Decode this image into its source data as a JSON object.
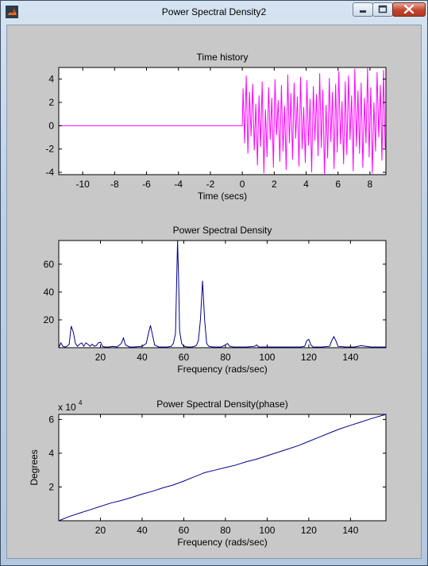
{
  "window": {
    "title": "Power Spectral Density2",
    "icon": "matlab-icon",
    "controls": [
      "minimize-icon",
      "maximize-icon",
      "close-icon"
    ]
  },
  "chart_data": [
    {
      "type": "line",
      "title": "Time history",
      "xlabel": "Time (secs)",
      "ylabel": "",
      "xlim": [
        -11.5,
        9
      ],
      "ylim": [
        -4.2,
        5
      ],
      "xticks": [
        -10,
        -8,
        -6,
        -4,
        -2,
        0,
        2,
        4,
        6,
        8
      ],
      "yticks": [
        -4,
        -2,
        0,
        2,
        4
      ],
      "color": "#ff00ff",
      "series": [
        {
          "x": [
            -11.5,
            0,
            0.05,
            0.15,
            0.25,
            0.35,
            0.45,
            0.55,
            0.65,
            0.75,
            0.85,
            0.95,
            1.05,
            1.15,
            1.25,
            1.35,
            1.45,
            1.55,
            1.65,
            1.75,
            1.85,
            1.95,
            2.05,
            2.15,
            2.25,
            2.35,
            2.45,
            2.55,
            2.65,
            2.75,
            2.85,
            2.95,
            3.05,
            3.15,
            3.25,
            3.35,
            3.45,
            3.55,
            3.65,
            3.75,
            3.85,
            3.95,
            4.05,
            4.15,
            4.25,
            4.35,
            4.45,
            4.55,
            4.65,
            4.75,
            4.85,
            4.95,
            5.05,
            5.15,
            5.25,
            5.35,
            5.45,
            5.55,
            5.65,
            5.75,
            5.85,
            5.95,
            6.05,
            6.15,
            6.25,
            6.35,
            6.45,
            6.55,
            6.65,
            6.75,
            6.85,
            6.95,
            7.05,
            7.15,
            7.25,
            7.35,
            7.45,
            7.55,
            7.65,
            7.75,
            7.85,
            7.95,
            8.05,
            8.15,
            8.25,
            8.35,
            8.45,
            8.55,
            8.65,
            8.75,
            8.85,
            8.95
          ],
          "y": [
            0,
            0,
            3.2,
            -1.5,
            4.3,
            -2.4,
            2.9,
            -0.9,
            3.6,
            -2.1,
            1.9,
            -3.4,
            2.6,
            -1.8,
            3.8,
            -4.1,
            1.4,
            -2.7,
            3.3,
            -1.2,
            2.4,
            -3.6,
            4.0,
            -0.8,
            2.2,
            -3.1,
            3.5,
            -2.2,
            1.7,
            -3.8,
            4.4,
            -1.5,
            2.8,
            -2.9,
            3.7,
            -1.1,
            2.5,
            -3.5,
            4.2,
            -2.0,
            1.6,
            -3.2,
            3.9,
            -1.7,
            2.3,
            -4.0,
            3.4,
            -1.3,
            2.7,
            -2.6,
            4.5,
            -1.9,
            3.1,
            -4.2,
            1.8,
            -2.8,
            4.1,
            -1.4,
            2.9,
            -3.7,
            3.6,
            -2.3,
            4.7,
            -1.6,
            2.1,
            -3.3,
            3.8,
            -2.5,
            4.3,
            -1.2,
            2.6,
            -3.9,
            4.9,
            -1.8,
            3.0,
            -2.4,
            3.7,
            -3.6,
            2.4,
            -1.5,
            5.0,
            -2.7,
            3.3,
            -4.1,
            2.0,
            -2.2,
            4.6,
            -1.0,
            3.5,
            -3.0,
            4.8,
            -1.9
          ]
        }
      ]
    },
    {
      "type": "line",
      "title": "Power Spectral Density",
      "xlabel": "Frequency (rads/sec)",
      "ylabel": "",
      "xlim": [
        0,
        157
      ],
      "ylim": [
        0,
        77
      ],
      "xticks": [
        20,
        40,
        60,
        80,
        100,
        120,
        140
      ],
      "yticks": [
        20,
        40,
        60
      ],
      "color": "#00008b",
      "series": [
        {
          "x": [
            0,
            1,
            2,
            3,
            4,
            5,
            6,
            7,
            8,
            9,
            10,
            11,
            12,
            13,
            14,
            15,
            16,
            17,
            18,
            19,
            20,
            21,
            22,
            24,
            26,
            28,
            30,
            31,
            32,
            34,
            36,
            40,
            42,
            43,
            44,
            45,
            46,
            48,
            50,
            52,
            54,
            55,
            56,
            57,
            57.5,
            58,
            59,
            60,
            62,
            64,
            66,
            67,
            68,
            69,
            70,
            71,
            72,
            74,
            78,
            80,
            81,
            82,
            84,
            90,
            94,
            95,
            96,
            100,
            110,
            116,
            118,
            119,
            120,
            121,
            122,
            126,
            130,
            131,
            132,
            133,
            134,
            138,
            142,
            145,
            150,
            157
          ],
          "y": [
            0,
            3.5,
            1.0,
            0.5,
            1.0,
            2.5,
            15.5,
            11.0,
            3.0,
            1.0,
            2.5,
            3.5,
            1.0,
            3.5,
            2.5,
            1.0,
            2.5,
            1.0,
            1.5,
            3.5,
            4.0,
            1.0,
            0.5,
            0.5,
            1.0,
            0.5,
            3.0,
            7.0,
            2.0,
            0.5,
            0.5,
            1.0,
            3.0,
            10.0,
            16.0,
            9.0,
            2.0,
            0.5,
            0.5,
            0.5,
            1.0,
            3.0,
            10.0,
            77.0,
            50.0,
            12.0,
            3.0,
            1.0,
            0.5,
            0.5,
            1.5,
            5.0,
            20.0,
            48.0,
            20.0,
            3.0,
            1.0,
            0.5,
            0.5,
            2.0,
            3.0,
            1.0,
            0.5,
            0.5,
            1.0,
            2.0,
            0.5,
            0.5,
            0.5,
            0.5,
            1.0,
            5.0,
            6.0,
            2.0,
            0.5,
            0.5,
            1.0,
            5.0,
            8.0,
            5.0,
            1.0,
            0.5,
            0.5,
            1.5,
            0.5,
            0.5
          ]
        }
      ]
    },
    {
      "type": "line",
      "title": "Power Spectral Density(phase)",
      "xlabel": "Frequency (rads/sec)",
      "ylabel": "Degrees",
      "exponent_label": "x 10",
      "exponent": "4",
      "xlim": [
        0,
        157
      ],
      "ylim": [
        0,
        6.3
      ],
      "xticks": [
        20,
        40,
        60,
        80,
        100,
        120,
        140
      ],
      "yticks": [
        2,
        4,
        6
      ],
      "color": "#00008b",
      "series": [
        {
          "x": [
            0,
            5,
            10,
            15,
            20,
            25,
            30,
            35,
            40,
            45,
            50,
            55,
            60,
            65,
            70,
            75,
            80,
            85,
            90,
            95,
            100,
            105,
            110,
            115,
            120,
            125,
            130,
            135,
            140,
            145,
            150,
            157
          ],
          "y": [
            0,
            0.25,
            0.45,
            0.65,
            0.85,
            1.05,
            1.2,
            1.38,
            1.58,
            1.75,
            1.95,
            2.12,
            2.35,
            2.6,
            2.85,
            3.0,
            3.15,
            3.3,
            3.5,
            3.65,
            3.85,
            4.05,
            4.25,
            4.45,
            4.7,
            4.95,
            5.2,
            5.45,
            5.65,
            5.85,
            6.05,
            6.3
          ]
        }
      ]
    }
  ]
}
